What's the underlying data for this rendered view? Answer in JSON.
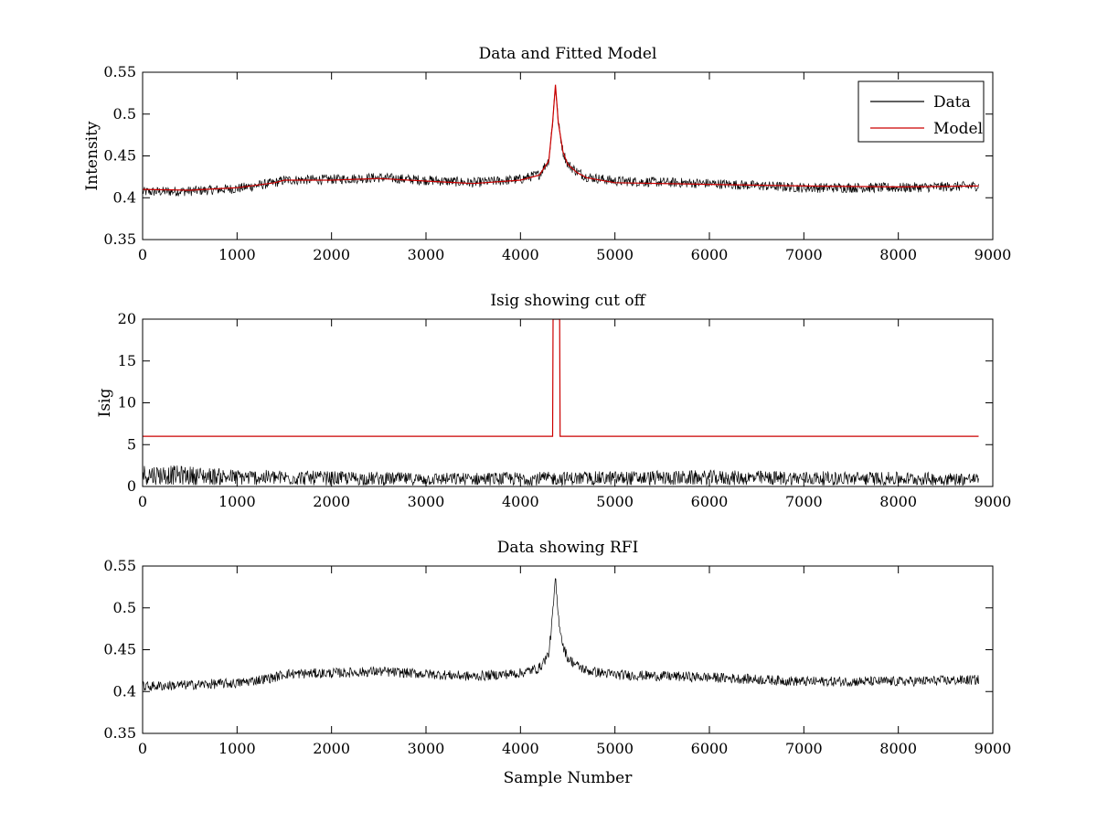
{
  "figure_colors": {
    "data": "#000000",
    "model": "#cc0000",
    "background": "#ffffff"
  },
  "chart_data": [
    {
      "type": "line",
      "title": "Data and Fitted Model",
      "xlabel": "",
      "ylabel": "Intensity",
      "xlim": [
        0,
        9000
      ],
      "ylim": [
        0.35,
        0.55
      ],
      "xticks": [
        "0",
        "1000",
        "2000",
        "3000",
        "4000",
        "5000",
        "6000",
        "7000",
        "8000",
        "9000"
      ],
      "yticks": [
        "0.35",
        "0.4",
        "0.45",
        "0.5",
        "0.55"
      ],
      "grid": false,
      "legend": {
        "placement": "top-right",
        "entries": [
          "Data",
          "Model"
        ]
      },
      "series": [
        {
          "name": "Data",
          "color": "#000000",
          "noisy": true,
          "noise_amplitude": 0.006,
          "x": [
            0,
            500,
            1000,
            1400,
            1500,
            2000,
            2500,
            3000,
            3500,
            4000,
            4200,
            4300,
            4340,
            4370,
            4400,
            4450,
            4500,
            4600,
            4700,
            5000,
            6000,
            7000,
            8000,
            8850
          ],
          "y": [
            0.407,
            0.408,
            0.411,
            0.418,
            0.421,
            0.422,
            0.424,
            0.421,
            0.418,
            0.422,
            0.428,
            0.445,
            0.49,
            0.535,
            0.49,
            0.455,
            0.44,
            0.431,
            0.425,
            0.42,
            0.417,
            0.412,
            0.412,
            0.414
          ]
        },
        {
          "name": "Model",
          "color": "#cc0000",
          "noisy": false,
          "x": [
            0,
            500,
            1000,
            1400,
            1500,
            2000,
            2500,
            3000,
            3500,
            4000,
            4200,
            4300,
            4340,
            4370,
            4400,
            4450,
            4500,
            4600,
            4700,
            5000,
            6000,
            7000,
            8000,
            8850
          ],
          "y": [
            0.41,
            0.409,
            0.412,
            0.418,
            0.421,
            0.421,
            0.423,
            0.42,
            0.417,
            0.421,
            0.427,
            0.444,
            0.49,
            0.535,
            0.49,
            0.455,
            0.44,
            0.43,
            0.424,
            0.418,
            0.416,
            0.414,
            0.413,
            0.414
          ]
        }
      ]
    },
    {
      "type": "line",
      "title": "Isig showing cut off",
      "xlabel": "",
      "ylabel": "Isig",
      "xlim": [
        0,
        9000
      ],
      "ylim": [
        0,
        20
      ],
      "xticks": [
        "0",
        "1000",
        "2000",
        "3000",
        "4000",
        "5000",
        "6000",
        "7000",
        "8000",
        "9000"
      ],
      "yticks": [
        "0",
        "5",
        "10",
        "15",
        "20"
      ],
      "grid": false,
      "series": [
        {
          "color": "#000000",
          "noisy": true,
          "noise_amplitude": 0.8,
          "x": [
            0,
            500,
            1000,
            2000,
            3000,
            4000,
            5000,
            6000,
            7000,
            8000,
            8850
          ],
          "y": [
            1.3,
            1.2,
            1.0,
            0.9,
            0.8,
            0.85,
            0.9,
            0.95,
            0.9,
            0.85,
            0.8
          ]
        },
        {
          "color": "#cc0000",
          "noisy": false,
          "x": [
            0,
            4340,
            4345,
            4350,
            4410,
            4415,
            4420,
            8850
          ],
          "y": [
            6,
            6,
            20,
            20,
            20,
            20,
            6,
            6
          ]
        }
      ]
    },
    {
      "type": "line",
      "title": "Data showing RFI",
      "xlabel": "Sample Number",
      "ylabel": "",
      "xlim": [
        0,
        9000
      ],
      "ylim": [
        0.35,
        0.55
      ],
      "xticks": [
        "0",
        "1000",
        "2000",
        "3000",
        "4000",
        "5000",
        "6000",
        "7000",
        "8000",
        "9000"
      ],
      "yticks": [
        "0.35",
        "0.4",
        "0.45",
        "0.5",
        "0.55"
      ],
      "grid": false,
      "series": [
        {
          "color": "#000000",
          "noisy": true,
          "noise_amplitude": 0.006,
          "x": [
            0,
            500,
            1000,
            1400,
            1500,
            2000,
            2500,
            3000,
            3500,
            4000,
            4200,
            4300,
            4340,
            4370,
            4400,
            4450,
            4500,
            4600,
            4700,
            5000,
            6000,
            7000,
            8000,
            8850
          ],
          "y": [
            0.406,
            0.408,
            0.41,
            0.417,
            0.421,
            0.422,
            0.424,
            0.421,
            0.418,
            0.422,
            0.428,
            0.445,
            0.49,
            0.535,
            0.49,
            0.455,
            0.44,
            0.431,
            0.425,
            0.42,
            0.417,
            0.412,
            0.412,
            0.414
          ]
        }
      ]
    }
  ]
}
